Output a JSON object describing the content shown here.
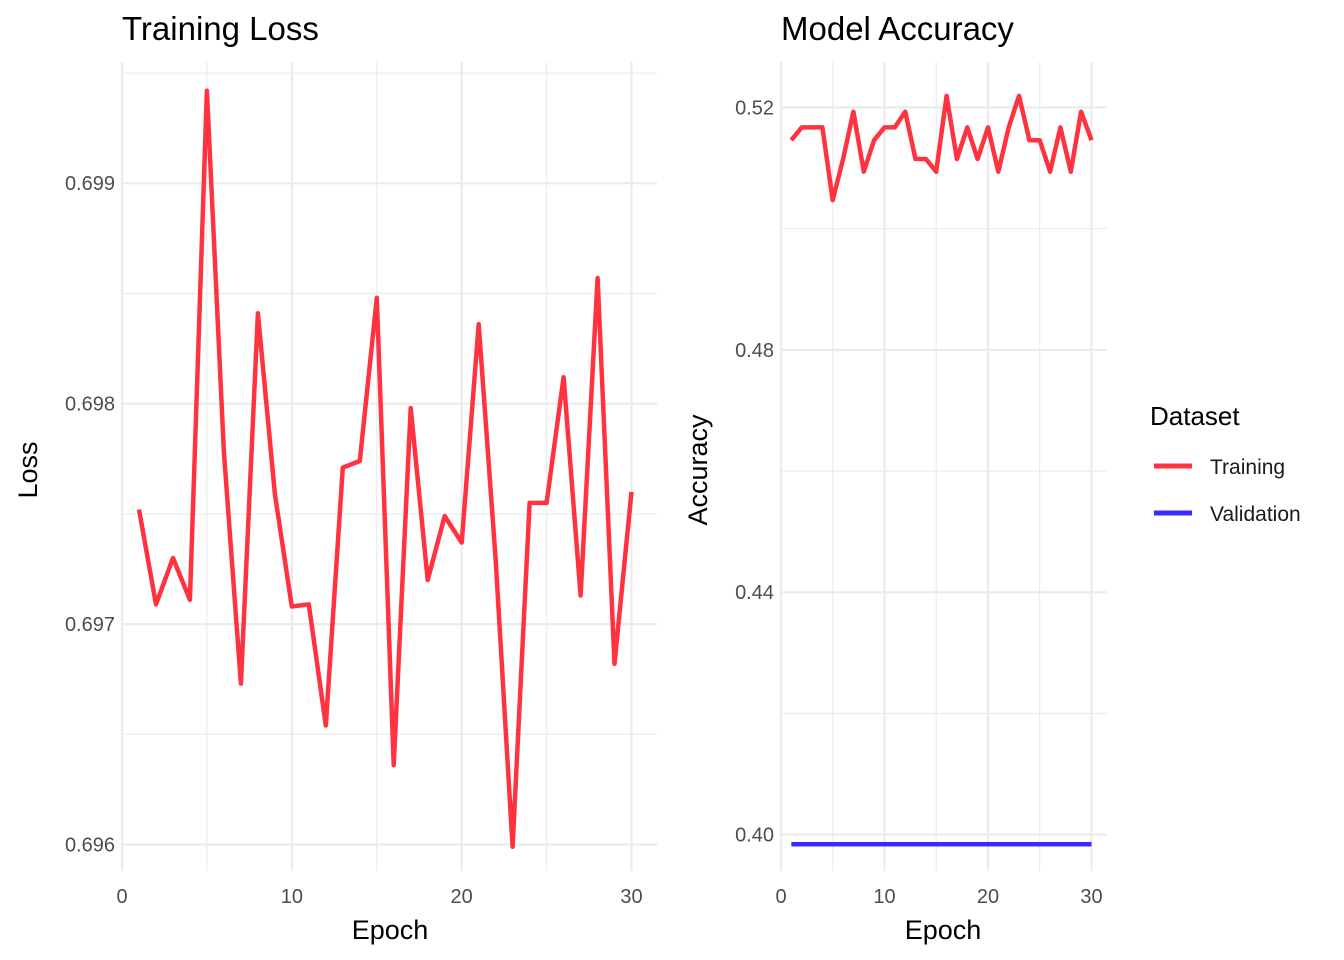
{
  "legend": {
    "title": "Dataset",
    "entries": [
      {
        "name": "Training",
        "color": "#ff333f"
      },
      {
        "name": "Validation",
        "color": "#3a2cff"
      }
    ]
  },
  "chart_data": [
    {
      "type": "line",
      "title": "Training Loss",
      "xlabel": "Epoch",
      "ylabel": "Loss",
      "xlim": [
        0,
        31.5
      ],
      "ylim": [
        0.69588,
        0.69955
      ],
      "xticks": [
        0,
        10,
        20,
        30
      ],
      "xtick_labels": [
        "0",
        "10",
        "20",
        "30"
      ],
      "yticks": [
        0.696,
        0.697,
        0.698,
        0.699
      ],
      "ytick_labels": [
        "0.696",
        "0.697",
        "0.698",
        "0.699"
      ],
      "grid": true,
      "x": [
        1,
        2,
        3,
        4,
        5,
        6,
        7,
        8,
        9,
        10,
        11,
        12,
        13,
        14,
        15,
        16,
        17,
        18,
        19,
        20,
        21,
        22,
        23,
        24,
        25,
        26,
        27,
        28,
        29,
        30
      ],
      "series": [
        {
          "name": "Training",
          "color": "#ff333f",
          "values": [
            0.69752,
            0.69709,
            0.6973,
            0.69711,
            0.69942,
            0.69778,
            0.69673,
            0.69841,
            0.69759,
            0.69708,
            0.69709,
            0.69654,
            0.69771,
            0.69774,
            0.69848,
            0.69636,
            0.69798,
            0.6972,
            0.69749,
            0.69737,
            0.69836,
            0.69729,
            0.69599,
            0.69755,
            0.69755,
            0.69812,
            0.69713,
            0.69857,
            0.69682,
            0.6976
          ]
        }
      ]
    },
    {
      "type": "line",
      "title": "Model Accuracy",
      "xlabel": "Epoch",
      "ylabel": "Accuracy",
      "xlim": [
        0,
        31.5
      ],
      "ylim": [
        0.394,
        0.5275
      ],
      "xticks": [
        0,
        10,
        20,
        30
      ],
      "xtick_labels": [
        "0",
        "10",
        "20",
        "30"
      ],
      "yticks": [
        0.4,
        0.44,
        0.48,
        0.52
      ],
      "ytick_labels": [
        "0.40",
        "0.44",
        "0.48",
        "0.52"
      ],
      "grid": true,
      "x": [
        1,
        2,
        3,
        4,
        5,
        6,
        7,
        8,
        9,
        10,
        11,
        12,
        13,
        14,
        15,
        16,
        17,
        18,
        19,
        20,
        21,
        22,
        23,
        24,
        25,
        26,
        27,
        28,
        29,
        30
      ],
      "series": [
        {
          "name": "Training",
          "color": "#ff333f",
          "values": [
            0.5146,
            0.5167,
            0.5167,
            0.5167,
            0.5047,
            0.5115,
            0.5193,
            0.5094,
            0.5146,
            0.5167,
            0.5167,
            0.5193,
            0.5115,
            0.5115,
            0.5094,
            0.5219,
            0.5115,
            0.5167,
            0.5115,
            0.5167,
            0.5094,
            0.5167,
            0.5219,
            0.5146,
            0.5146,
            0.5094,
            0.5167,
            0.5094,
            0.5193,
            0.5146
          ]
        },
        {
          "name": "Validation",
          "color": "#3a2cff",
          "values": [
            0.3984,
            0.3984,
            0.3984,
            0.3984,
            0.3984,
            0.3984,
            0.3984,
            0.3984,
            0.3984,
            0.3984,
            0.3984,
            0.3984,
            0.3984,
            0.3984,
            0.3984,
            0.3984,
            0.3984,
            0.3984,
            0.3984,
            0.3984,
            0.3984,
            0.3984,
            0.3984,
            0.3984,
            0.3984,
            0.3984,
            0.3984,
            0.3984,
            0.3984,
            0.3984
          ]
        }
      ]
    }
  ]
}
